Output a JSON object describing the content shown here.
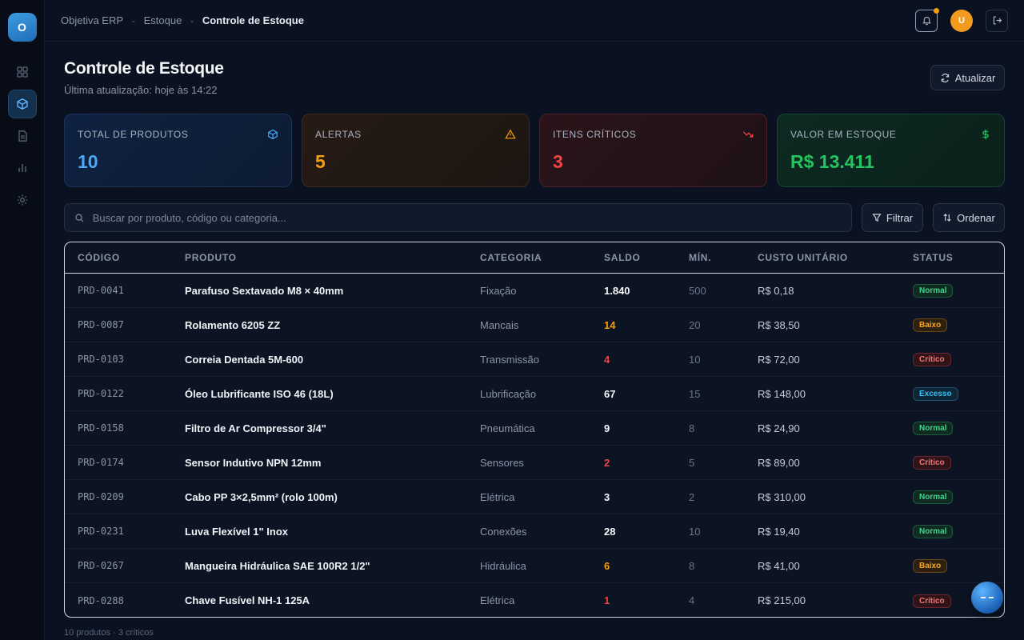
{
  "app": {
    "logo_letter": "O"
  },
  "breadcrumb": [
    "Objetiva ERP",
    "Estoque",
    "Controle de Estoque"
  ],
  "user": {
    "avatar_letter": "U"
  },
  "header": {
    "title": "Controle de Estoque",
    "subtitle": "Última atualização: hoje às 14:22",
    "refresh_label": "Atualizar"
  },
  "stats": [
    {
      "label": "Total de Produtos",
      "value": "10",
      "icon": "box-icon",
      "color": "#4aa8f5"
    },
    {
      "label": "Alertas",
      "value": "5",
      "icon": "warning-icon",
      "color": "#f59e0b"
    },
    {
      "label": "Itens Críticos",
      "value": "3",
      "icon": "trending-down-icon",
      "color": "#ef4444"
    },
    {
      "label": "Valor em Estoque",
      "value": "R$ 13.411",
      "icon": "dollar-icon",
      "color": "#22c55e"
    }
  ],
  "search": {
    "placeholder": "Buscar por produto, código ou categoria...",
    "value": ""
  },
  "toolbar": {
    "filter_label": "Filtrar",
    "sort_label": "Ordenar"
  },
  "table": {
    "columns": [
      "Código",
      "Produto",
      "Categoria",
      "Saldo",
      "Mín.",
      "Custo Unitário",
      "Status"
    ],
    "rows": [
      {
        "code": "PRD-0041",
        "product": "Parafuso Sextavado M8 × 40mm",
        "category": "Fixação",
        "saldo": "1.840",
        "min": "500",
        "cost": "R$ 0,18",
        "status": "Normal"
      },
      {
        "code": "PRD-0087",
        "product": "Rolamento 6205 ZZ",
        "category": "Mancais",
        "saldo": "14",
        "min": "20",
        "cost": "R$ 38,50",
        "status": "Baixo"
      },
      {
        "code": "PRD-0103",
        "product": "Correia Dentada 5M-600",
        "category": "Transmissão",
        "saldo": "4",
        "min": "10",
        "cost": "R$ 72,00",
        "status": "Crítico"
      },
      {
        "code": "PRD-0122",
        "product": "Óleo Lubrificante ISO 46 (18L)",
        "category": "Lubrificação",
        "saldo": "67",
        "min": "15",
        "cost": "R$ 148,00",
        "status": "Excesso"
      },
      {
        "code": "PRD-0158",
        "product": "Filtro de Ar Compressor 3/4\"",
        "category": "Pneumática",
        "saldo": "9",
        "min": "8",
        "cost": "R$ 24,90",
        "status": "Normal"
      },
      {
        "code": "PRD-0174",
        "product": "Sensor Indutivo NPN 12mm",
        "category": "Sensores",
        "saldo": "2",
        "min": "5",
        "cost": "R$ 89,00",
        "status": "Crítico"
      },
      {
        "code": "PRD-0209",
        "product": "Cabo PP 3×2,5mm² (rolo 100m)",
        "category": "Elétrica",
        "saldo": "3",
        "min": "2",
        "cost": "R$ 310,00",
        "status": "Normal"
      },
      {
        "code": "PRD-0231",
        "product": "Luva Flexível 1\" Inox",
        "category": "Conexões",
        "saldo": "28",
        "min": "10",
        "cost": "R$ 19,40",
        "status": "Normal"
      },
      {
        "code": "PRD-0267",
        "product": "Mangueira Hidráulica SAE 100R2 1/2\"",
        "category": "Hidráulica",
        "saldo": "6",
        "min": "8",
        "cost": "R$ 41,00",
        "status": "Baixo"
      },
      {
        "code": "PRD-0288",
        "product": "Chave Fusível NH-1 125A",
        "category": "Elétrica",
        "saldo": "1",
        "min": "4",
        "cost": "R$ 215,00",
        "status": "Crítico"
      }
    ]
  },
  "footer": {
    "summary": "10 produtos · 3 críticos"
  }
}
